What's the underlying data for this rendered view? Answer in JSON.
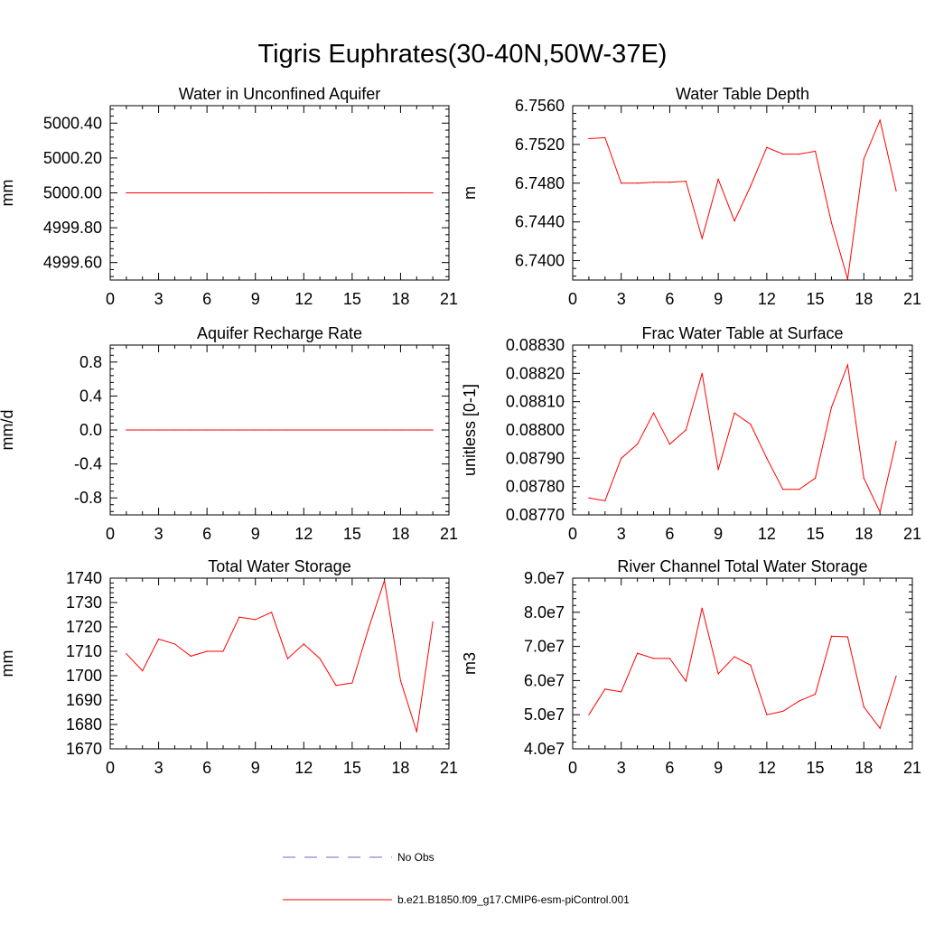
{
  "title": "Tigris Euphrates(30-40N,50W-37E)",
  "colors": {
    "model": "#ff0000",
    "obs": "#6a6acd",
    "axis": "#000000"
  },
  "legend": {
    "obs_label": "No Obs",
    "model_label": "b.e21.B1850.f09_g17.CMIP6-esm-piControl.001"
  },
  "chart_data": [
    {
      "type": "line",
      "title": "Water in Unconfined Aquifer",
      "xlabel": "",
      "ylabel": "mm",
      "xlim": [
        0,
        21
      ],
      "ylim": [
        4999.5,
        5000.5
      ],
      "xticks": [
        0,
        3,
        6,
        9,
        12,
        15,
        18,
        21
      ],
      "xtick_labels": [
        "0",
        "3",
        "6",
        "9",
        "12",
        "15",
        "18",
        "21"
      ],
      "yticks": [
        4999.6,
        4999.8,
        5000.0,
        5000.2,
        5000.4
      ],
      "ytick_labels": [
        "4999.60",
        "4999.80",
        "5000.00",
        "5000.20",
        "5000.40"
      ],
      "x": [
        1,
        2,
        3,
        4,
        5,
        6,
        7,
        8,
        9,
        10,
        11,
        12,
        13,
        14,
        15,
        16,
        17,
        18,
        19,
        20
      ],
      "y": [
        5000,
        5000,
        5000,
        5000,
        5000,
        5000,
        5000,
        5000,
        5000,
        5000,
        5000,
        5000,
        5000,
        5000,
        5000,
        5000,
        5000,
        5000,
        5000,
        5000
      ]
    },
    {
      "type": "line",
      "title": "Water Table Depth",
      "xlabel": "",
      "ylabel": "m",
      "xlim": [
        0,
        21
      ],
      "ylim": [
        6.738,
        6.756
      ],
      "xticks": [
        0,
        3,
        6,
        9,
        12,
        15,
        18,
        21
      ],
      "xtick_labels": [
        "0",
        "3",
        "6",
        "9",
        "12",
        "15",
        "18",
        "21"
      ],
      "yticks": [
        6.74,
        6.744,
        6.748,
        6.752,
        6.756
      ],
      "ytick_labels": [
        "6.7400",
        "6.7440",
        "6.7480",
        "6.7520",
        "6.7560"
      ],
      "x": [
        1,
        2,
        3,
        4,
        5,
        6,
        7,
        8,
        9,
        10,
        11,
        12,
        13,
        14,
        15,
        16,
        17,
        18,
        19,
        20
      ],
      "y": [
        6.7526,
        6.7527,
        6.748,
        6.748,
        6.7481,
        6.7481,
        6.7482,
        6.7423,
        6.7484,
        6.7441,
        6.7477,
        6.7517,
        6.751,
        6.751,
        6.7513,
        6.7439,
        6.7381,
        6.7505,
        6.7545,
        6.7472
      ]
    },
    {
      "type": "line",
      "title": "Aquifer Recharge Rate",
      "xlabel": "",
      "ylabel": "mm/d",
      "xlim": [
        0,
        21
      ],
      "ylim": [
        -1.0,
        1.0
      ],
      "xticks": [
        0,
        3,
        6,
        9,
        12,
        15,
        18,
        21
      ],
      "xtick_labels": [
        "0",
        "3",
        "6",
        "9",
        "12",
        "15",
        "18",
        "21"
      ],
      "yticks": [
        -0.8,
        -0.4,
        0.0,
        0.4,
        0.8
      ],
      "ytick_labels": [
        "-0.8",
        "-0.4",
        "0.0",
        "0.4",
        "0.8"
      ],
      "x": [
        1,
        2,
        3,
        4,
        5,
        6,
        7,
        8,
        9,
        10,
        11,
        12,
        13,
        14,
        15,
        16,
        17,
        18,
        19,
        20
      ],
      "y": [
        0,
        0,
        0,
        0,
        0,
        0,
        0,
        0,
        0,
        0,
        0,
        0,
        0,
        0,
        0,
        0,
        0,
        0,
        0,
        0
      ]
    },
    {
      "type": "line",
      "title": "Frac Water Table at Surface",
      "xlabel": "",
      "ylabel": "unitless [0-1]",
      "xlim": [
        0,
        21
      ],
      "ylim": [
        0.0877,
        0.0883
      ],
      "xticks": [
        0,
        3,
        6,
        9,
        12,
        15,
        18,
        21
      ],
      "xtick_labels": [
        "0",
        "3",
        "6",
        "9",
        "12",
        "15",
        "18",
        "21"
      ],
      "yticks": [
        0.0877,
        0.0878,
        0.0879,
        0.088,
        0.0881,
        0.0882,
        0.0883
      ],
      "ytick_labels": [
        "0.08770",
        "0.08780",
        "0.08790",
        "0.08800",
        "0.08810",
        "0.08820",
        "0.08830"
      ],
      "x": [
        1,
        2,
        3,
        4,
        5,
        6,
        7,
        8,
        9,
        10,
        11,
        12,
        13,
        14,
        15,
        16,
        17,
        18,
        19,
        20
      ],
      "y": [
        0.08776,
        0.08775,
        0.0879,
        0.08795,
        0.08806,
        0.08795,
        0.088,
        0.0882,
        0.08786,
        0.08806,
        0.08802,
        0.0879,
        0.08779,
        0.08779,
        0.08783,
        0.08808,
        0.08823,
        0.08783,
        0.08771,
        0.08796
      ]
    },
    {
      "type": "line",
      "title": "Total Water Storage",
      "xlabel": "",
      "ylabel": "mm",
      "xlim": [
        0,
        21
      ],
      "ylim": [
        1670,
        1740
      ],
      "xticks": [
        0,
        3,
        6,
        9,
        12,
        15,
        18,
        21
      ],
      "xtick_labels": [
        "0",
        "3",
        "6",
        "9",
        "12",
        "15",
        "18",
        "21"
      ],
      "yticks": [
        1670,
        1680,
        1690,
        1700,
        1710,
        1720,
        1730,
        1740
      ],
      "ytick_labels": [
        "1670",
        "1680",
        "1690",
        "1700",
        "1710",
        "1720",
        "1730",
        "1740"
      ],
      "x": [
        1,
        2,
        3,
        4,
        5,
        6,
        7,
        8,
        9,
        10,
        11,
        12,
        13,
        14,
        15,
        16,
        17,
        18,
        19,
        20
      ],
      "y": [
        1709,
        1702,
        1715,
        1713,
        1708,
        1710,
        1710,
        1724,
        1723,
        1726,
        1707,
        1713,
        1707,
        1696,
        1697,
        1719,
        1739,
        1698,
        1677,
        1722
      ]
    },
    {
      "type": "line",
      "title": "River Channel Total Water Storage",
      "xlabel": "",
      "ylabel": "m3",
      "xlim": [
        0,
        21
      ],
      "ylim": [
        40000000,
        90000000
      ],
      "xticks": [
        0,
        3,
        6,
        9,
        12,
        15,
        18,
        21
      ],
      "xtick_labels": [
        "0",
        "3",
        "6",
        "9",
        "12",
        "15",
        "18",
        "21"
      ],
      "yticks": [
        40000000,
        50000000,
        60000000,
        70000000,
        80000000,
        90000000
      ],
      "ytick_labels": [
        "4.0e7",
        "5.0e7",
        "6.0e7",
        "7.0e7",
        "8.0e7",
        "9.0e7"
      ],
      "x": [
        1,
        2,
        3,
        4,
        5,
        6,
        7,
        8,
        9,
        10,
        11,
        12,
        13,
        14,
        15,
        16,
        17,
        18,
        19,
        20
      ],
      "y": [
        50000000,
        57500000,
        56700000,
        68000000,
        66500000,
        66500000,
        59800000,
        81200000,
        62000000,
        67000000,
        64500000,
        50000000,
        51000000,
        54000000,
        56000000,
        73000000,
        72800000,
        52300000,
        46000000,
        61300000
      ]
    }
  ]
}
